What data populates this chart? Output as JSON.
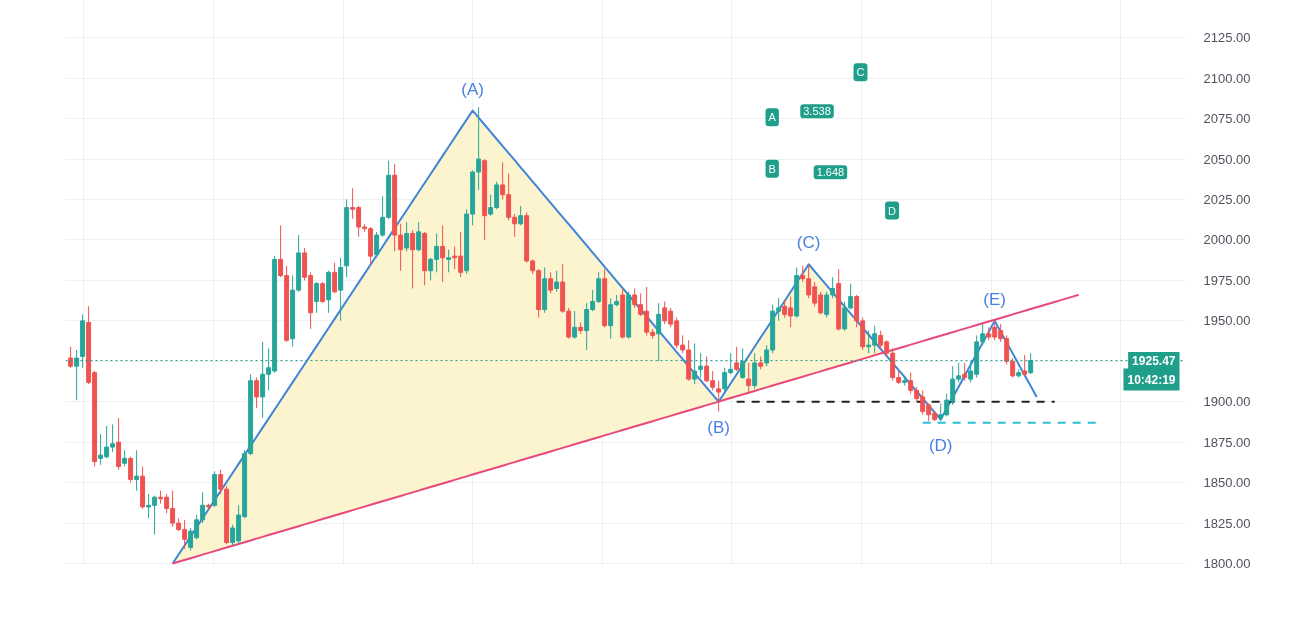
{
  "chart_data": {
    "type": "candlestick",
    "categories": [
      null,
      null,
      null,
      null,
      null,
      null,
      null,
      null,
      null,
      null,
      null,
      null,
      null,
      null,
      null,
      null,
      null,
      null,
      null,
      null,
      null,
      null,
      null,
      null,
      null,
      null,
      null,
      null,
      null,
      null,
      null,
      null,
      null,
      null,
      null,
      null,
      null,
      null,
      null,
      null,
      null,
      null,
      null,
      null,
      null,
      null,
      null,
      null,
      null,
      null,
      null,
      null,
      null,
      null,
      null,
      null,
      null,
      null,
      null,
      null,
      null,
      null,
      null,
      null,
      null,
      null,
      null,
      null,
      null,
      null,
      null,
      null,
      null,
      null,
      null,
      null,
      null,
      null,
      null,
      null,
      null,
      null,
      null,
      null,
      null,
      null,
      null,
      null,
      null,
      null,
      null,
      null,
      null,
      null,
      null,
      null,
      null,
      null,
      null,
      null,
      null,
      null,
      null,
      null,
      null,
      null,
      null,
      null,
      null,
      null,
      null,
      null,
      null,
      null,
      null,
      null,
      null,
      null,
      null,
      null,
      null,
      null,
      null,
      null,
      null,
      null,
      null,
      null,
      null,
      null,
      null,
      null,
      null,
      null,
      null,
      null,
      null,
      null,
      null,
      null,
      null,
      null,
      null,
      null,
      null,
      null,
      null,
      null,
      null,
      null,
      null,
      null,
      null,
      null,
      null,
      null,
      null,
      null,
      null,
      null,
      null,
      null,
      null,
      null,
      null,
      null,
      null,
      null,
      null,
      null,
      null,
      null
    ],
    "ohlc": [
      [
        1927,
        1934,
        1921,
        1922
      ],
      [
        1922,
        1932,
        1901,
        1927
      ],
      [
        1928,
        1954,
        1921,
        1950
      ],
      [
        1949,
        1959,
        1911,
        1912
      ],
      [
        1918,
        1919,
        1860,
        1863
      ],
      [
        1865,
        1880,
        1861,
        1867
      ],
      [
        1866,
        1885,
        1865,
        1872
      ],
      [
        1872,
        1886,
        1869,
        1874
      ],
      [
        1875,
        1890,
        1858,
        1860
      ],
      [
        1862,
        1870,
        1860,
        1865
      ],
      [
        1865,
        1866,
        1850,
        1852
      ],
      [
        1852,
        1870,
        1845,
        1854
      ],
      [
        1854,
        1860,
        1834,
        1835
      ],
      [
        1835,
        1843,
        1828,
        1836
      ],
      [
        1836,
        1842,
        1818,
        1841
      ],
      [
        1841,
        1845,
        1837,
        1840
      ],
      [
        1841,
        1843,
        1831,
        1834
      ],
      [
        1834,
        1845,
        1823,
        1825
      ],
      [
        1825,
        1828,
        1820,
        1821
      ],
      [
        1821,
        1827,
        1809,
        1815
      ],
      [
        1810,
        1822,
        1808,
        1820
      ],
      [
        1816,
        1830,
        1815,
        1827
      ],
      [
        1827,
        1844,
        1825,
        1836
      ],
      [
        1836,
        1837,
        1833,
        1835
      ],
      [
        1836,
        1857,
        1835,
        1855
      ],
      [
        1855,
        1858,
        1843,
        1846
      ],
      [
        1846,
        1848,
        1812,
        1813
      ],
      [
        1813,
        1824,
        1811,
        1822
      ],
      [
        1814,
        1836,
        1812,
        1830
      ],
      [
        1829,
        1870,
        1828,
        1868
      ],
      [
        1868,
        1917,
        1867,
        1913
      ],
      [
        1913,
        1915,
        1896,
        1903
      ],
      [
        1903,
        1937,
        1890,
        1917
      ],
      [
        1917,
        1933,
        1907,
        1921
      ],
      [
        1919,
        1990,
        1918,
        1988
      ],
      [
        1988,
        2009,
        1977,
        1978
      ],
      [
        1978,
        1984,
        1937,
        1938
      ],
      [
        1939,
        1978,
        1934,
        1969
      ],
      [
        1969,
        2003,
        1968,
        1992
      ],
      [
        1992,
        1995,
        1975,
        1977
      ],
      [
        1978,
        1980,
        1945,
        1955
      ],
      [
        1962,
        1974,
        1955,
        1973
      ],
      [
        1973,
        1974,
        1961,
        1962
      ],
      [
        1963,
        1981,
        1955,
        1980
      ],
      [
        1980,
        1986,
        1967,
        1968
      ],
      [
        1969,
        1989,
        1950,
        1983
      ],
      [
        1984,
        2025,
        1977,
        2020
      ],
      [
        2020,
        2032,
        2013,
        2019
      ],
      [
        2020,
        2021,
        2002,
        2008
      ],
      [
        2008,
        2010,
        2005,
        2007
      ],
      [
        2007,
        2008,
        1985,
        1990
      ],
      [
        1991,
        2005,
        1989,
        2003
      ],
      [
        2003,
        2027,
        2002,
        2014
      ],
      [
        2014,
        2049,
        2013,
        2040
      ],
      [
        2040,
        2047,
        1993,
        2003
      ],
      [
        2003,
        2010,
        1981,
        1994
      ],
      [
        1995,
        2011,
        1993,
        2004
      ],
      [
        2004,
        2006,
        1970,
        1994
      ],
      [
        1994,
        2011,
        1993,
        2005
      ],
      [
        2004,
        2005,
        1972,
        1981
      ],
      [
        1981,
        1989,
        1975,
        1988
      ],
      [
        1988,
        2004,
        1980,
        1996
      ],
      [
        1996,
        2009,
        1974,
        1989
      ],
      [
        1988,
        1994,
        1980,
        1989
      ],
      [
        1990,
        1996,
        1982,
        1989
      ],
      [
        1990,
        2005,
        1977,
        1980
      ],
      [
        1981,
        2019,
        1979,
        2016
      ],
      [
        2016,
        2043,
        2009,
        2042
      ],
      [
        2042,
        2082,
        2031,
        2050
      ],
      [
        2049,
        2050,
        2000,
        2015
      ],
      [
        2016,
        2028,
        2015,
        2020
      ],
      [
        2020,
        2036,
        2019,
        2034
      ],
      [
        2034,
        2048,
        2025,
        2028
      ],
      [
        2028,
        2041,
        2012,
        2014
      ],
      [
        2014,
        2016,
        2002,
        2010
      ],
      [
        2010,
        2021,
        2009,
        2015
      ],
      [
        2015,
        2017,
        1986,
        1987
      ],
      [
        1987,
        1988,
        1979,
        1981
      ],
      [
        1981,
        1982,
        1952,
        1957
      ],
      [
        1957,
        1983,
        1955,
        1976
      ],
      [
        1976,
        1980,
        1967,
        1969
      ],
      [
        1970,
        1981,
        1968,
        1974
      ],
      [
        1974,
        1985,
        1955,
        1956
      ],
      [
        1956,
        1958,
        1939,
        1940
      ],
      [
        1940,
        1956,
        1939,
        1946
      ],
      [
        1946,
        1949,
        1942,
        1944
      ],
      [
        1944,
        1961,
        1932,
        1957
      ],
      [
        1957,
        1969,
        1956,
        1962
      ],
      [
        1962,
        1980,
        1961,
        1976
      ],
      [
        1976,
        1982,
        1946,
        1947
      ],
      [
        1947,
        1964,
        1939,
        1960
      ],
      [
        1960,
        1966,
        1959,
        1962
      ],
      [
        1966,
        1970,
        1939,
        1940
      ],
      [
        1940,
        1968,
        1939,
        1966
      ],
      [
        1966,
        1970,
        1958,
        1960
      ],
      [
        1960,
        1967,
        1953,
        1954
      ],
      [
        1956,
        1971,
        1941,
        1943
      ],
      [
        1943,
        1945,
        1939,
        1941
      ],
      [
        1942,
        1961,
        1925,
        1954
      ],
      [
        1958,
        1962,
        1948,
        1950
      ],
      [
        1956,
        1958,
        1946,
        1948
      ],
      [
        1950,
        1952,
        1933,
        1935
      ],
      [
        1935,
        1941,
        1930,
        1932
      ],
      [
        1932,
        1938,
        1913,
        1914
      ],
      [
        1914,
        1936,
        1911,
        1919
      ],
      [
        1920,
        1930,
        1915,
        1922
      ],
      [
        1922,
        1928,
        1912,
        1913
      ],
      [
        1913,
        1919,
        1907,
        1909
      ],
      [
        1908,
        1913,
        1894,
        1906
      ],
      [
        1908,
        1921,
        1906,
        1918
      ],
      [
        1918,
        1930,
        1917,
        1920
      ],
      [
        1924,
        1934,
        1919,
        1920
      ],
      [
        1915,
        1933,
        1914,
        1925
      ],
      [
        1914,
        1924,
        1905,
        1910
      ],
      [
        1910,
        1930,
        1908,
        1924
      ],
      [
        1924,
        1928,
        1920,
        1922
      ],
      [
        1924,
        1935,
        1922,
        1932
      ],
      [
        1932,
        1960,
        1930,
        1956
      ],
      [
        1956,
        1964,
        1950,
        1958
      ],
      [
        1959,
        1963,
        1952,
        1954
      ],
      [
        1958,
        1965,
        1946,
        1953
      ],
      [
        1953,
        1983,
        1952,
        1978
      ],
      [
        1978,
        1984,
        1974,
        1976
      ],
      [
        1976,
        1985,
        1964,
        1966
      ],
      [
        1971,
        1974,
        1959,
        1961
      ],
      [
        1966,
        1968,
        1954,
        1955
      ],
      [
        1954,
        1968,
        1952,
        1966
      ],
      [
        1966,
        1977,
        1964,
        1970
      ],
      [
        1973,
        1982,
        1944,
        1945
      ],
      [
        1945,
        1962,
        1944,
        1958
      ],
      [
        1958,
        1973,
        1957,
        1965
      ],
      [
        1965,
        1966,
        1946,
        1950
      ],
      [
        1950,
        1952,
        1932,
        1934
      ],
      [
        1934,
        1944,
        1930,
        1935
      ],
      [
        1935,
        1947,
        1930,
        1942
      ],
      [
        1941,
        1944,
        1932,
        1935
      ],
      [
        1937,
        1938,
        1928,
        1930
      ],
      [
        1930,
        1933,
        1913,
        1915
      ],
      [
        1915,
        1919,
        1911,
        1912
      ],
      [
        1912,
        1916,
        1910,
        1913
      ],
      [
        1913,
        1918,
        1905,
        1907
      ],
      [
        1907,
        1909,
        1900,
        1902
      ],
      [
        1903,
        1907,
        1892,
        1894
      ],
      [
        1898,
        1899,
        1888,
        1892
      ],
      [
        1893,
        1894,
        1888,
        1889
      ],
      [
        1890,
        1899,
        1888,
        1892
      ],
      [
        1892,
        1905,
        1891,
        1901
      ],
      [
        1900,
        1922,
        1898,
        1914
      ],
      [
        1914,
        1924,
        1912,
        1916
      ],
      [
        1917,
        1924,
        1913,
        1915
      ],
      [
        1914,
        1925,
        1912,
        1919
      ],
      [
        1917,
        1941,
        1915,
        1937
      ],
      [
        1937,
        1948,
        1935,
        1942
      ],
      [
        1942,
        1946,
        1938,
        1940
      ],
      [
        1946,
        1950,
        1938,
        1940
      ],
      [
        1944,
        1948,
        1937,
        1939
      ],
      [
        1939,
        1941,
        1923,
        1925
      ],
      [
        1925,
        1927,
        1915,
        1916
      ],
      [
        1916,
        1920,
        1915,
        1918
      ],
      [
        1919,
        1929,
        1916,
        1917
      ],
      [
        1918,
        1930,
        1917,
        1925.47
      ],
      null,
      null,
      null,
      null,
      null,
      null,
      null,
      null,
      null,
      null,
      null
    ],
    "series": [
      {
        "type": "line",
        "color": "#3d85d6",
        "values": [
          null,
          null,
          null,
          null,
          null,
          null,
          null,
          null,
          null,
          null,
          null,
          null,
          null,
          null,
          null,
          null,
          null,
          1800.0,
          1805.6,
          1811.2,
          1816.8,
          1822.4,
          1828.0,
          1833.6,
          1839.2,
          1844.8,
          1850.4,
          1856.0,
          1861.6,
          1867.2,
          1872.8,
          1878.4,
          1884.0,
          1889.6,
          1895.2,
          1900.8,
          1906.4,
          1912.0,
          1917.6,
          1923.2,
          1928.8,
          1934.4,
          1940.0,
          1945.6,
          1951.2,
          1956.8,
          1962.4,
          1968.0,
          1973.6,
          1979.2,
          1984.8,
          1990.4,
          1996.0,
          2001.6,
          2007.2,
          2012.8,
          2018.4,
          2024.0,
          2029.6,
          2035.2,
          2040.8,
          2046.4,
          2052.0,
          2057.6,
          2063.2,
          2068.8,
          2074.4,
          2080.0,
          2075.6,
          2071.2,
          2066.8,
          2062.4,
          2058.0,
          2053.7,
          2049.3,
          2044.9,
          2040.5,
          2036.1,
          2031.7,
          2027.3,
          2022.9,
          2018.5,
          2014.1,
          2009.8,
          2005.4,
          2001.0,
          1996.6,
          1992.2,
          1987.8,
          1983.4,
          1979.0,
          1974.6,
          1970.2,
          1965.9,
          1961.5,
          1957.1,
          1952.7,
          1948.3,
          1943.9,
          1939.5,
          1935.1,
          1930.7,
          1926.3,
          1921.9,
          1917.6,
          1913.2,
          1908.8,
          1904.4,
          1900.0,
          1905.7,
          1911.3,
          1917.0,
          1922.7,
          1928.3,
          1934.0,
          1939.7,
          1945.3,
          1951.0,
          1956.7,
          1962.3,
          1968.0,
          1973.7,
          1979.3,
          1985.0,
          1980.6,
          1976.3,
          1971.9,
          1967.5,
          1963.2,
          1958.8,
          1954.5,
          1950.1,
          1945.7,
          1941.4,
          1937.0,
          1932.6,
          1928.3,
          1923.9,
          1919.5,
          1915.2,
          1910.8,
          1906.5,
          1902.1,
          1897.7,
          1893.4,
          1889.0,
          1895.8,
          1902.6,
          1909.3,
          1916.1,
          1922.9,
          1929.7,
          1936.4,
          1943.2,
          1950.0,
          1943.3,
          1936.6,
          1929.9,
          1923.1,
          1916.4,
          1909.7,
          1903.0,
          null,
          null,
          null,
          null,
          null,
          null,
          null,
          null,
          null,
          null
        ],
        "upper": [
          null,
          null,
          null,
          null,
          null,
          null,
          null,
          null,
          null,
          null,
          null,
          null,
          null,
          null,
          null,
          null,
          null,
          1800.0,
          1805.6,
          1811.2,
          1816.8,
          1822.4,
          1828.0,
          1833.6,
          1839.2,
          1844.8,
          1850.4,
          1856.0,
          1861.6,
          1867.2,
          1872.8,
          1878.4,
          1884.0,
          1889.6,
          1895.2,
          1900.8,
          1906.4,
          1912.0,
          1917.6,
          1923.2,
          1928.8,
          1934.4,
          1940.0,
          1945.6,
          1951.2,
          1956.8,
          1962.4,
          1968.0,
          1973.6,
          1979.2,
          1984.8,
          1990.4,
          1996.0,
          2001.6,
          2007.2,
          2012.8,
          2018.4,
          2024.0,
          2029.6,
          2035.2,
          2040.8,
          2046.4,
          2052.0,
          2057.6,
          2063.2,
          2068.8,
          2074.4,
          2080.0,
          2075.6,
          2071.2,
          2066.8,
          2062.4,
          2058.0,
          2053.7,
          2049.3,
          2044.9,
          2040.5,
          2036.1,
          2031.7,
          2027.3,
          2022.9,
          2018.5,
          2014.1,
          2009.8,
          2005.4,
          2001.0,
          1996.6,
          1992.2,
          1987.8,
          1983.4,
          1979.0,
          1974.6,
          1970.2,
          1965.9,
          1961.5,
          1957.1,
          1952.7,
          1948.3,
          1943.9,
          1939.5,
          1935.1,
          1930.7,
          1926.3,
          1921.9,
          1917.6,
          1913.2,
          1908.8,
          1904.4,
          1900.0,
          1905.7,
          1911.3,
          1917.0,
          1922.7,
          1928.3,
          1934.0,
          1939.7,
          1945.3,
          1951.0,
          1956.7,
          1962.3,
          1968.0,
          1973.7,
          1979.3,
          1985.0,
          1980.6,
          1976.3,
          1971.9,
          1967.5,
          1963.2,
          1958.8,
          1954.5,
          1950.1,
          1945.7,
          1941.4,
          1937.0,
          1932.6,
          null,
          null,
          null,
          null,
          null,
          null,
          null,
          null,
          null,
          null,
          null,
          null,
          null,
          null,
          null,
          null,
          null,
          null,
          null,
          null,
          null,
          null,
          null,
          null,
          null,
          null,
          null,
          null,
          null,
          null,
          null,
          null,
          null,
          null,
          null,
          null
        ],
        "lower": [
          null,
          null,
          null,
          null,
          null,
          null,
          null,
          null,
          null,
          null,
          null,
          null,
          null,
          null,
          null,
          null,
          null,
          1800.0,
          1801.1,
          1802.2,
          1803.3,
          1804.4,
          1805.5,
          1806.6,
          1807.7,
          1808.8,
          1809.9,
          1811.0,
          1812.1,
          1813.2,
          1814.3,
          1815.4,
          1816.5,
          1817.6,
          1818.7,
          1819.8,
          1820.9,
          1822.0,
          1823.1,
          1824.2,
          1825.3,
          1826.4,
          1827.5,
          1828.6,
          1829.7,
          1830.8,
          1831.9,
          1833.0,
          1834.1,
          1835.2,
          1836.3,
          1837.4,
          1838.5,
          1839.6,
          1840.7,
          1841.8,
          1842.9,
          1844.0,
          1845.1,
          1846.2,
          1847.3,
          1848.4,
          1849.5,
          1850.6,
          1851.7,
          1852.8,
          1853.9,
          1855.0,
          1856.1,
          1857.2,
          1858.3,
          1859.4,
          1860.5,
          1861.6,
          1862.7,
          1863.8,
          1864.9,
          1866.0,
          1867.1,
          1868.2,
          1869.3,
          1870.4,
          1871.5,
          1872.6,
          1873.7,
          1874.8,
          1875.9,
          1877.0,
          1878.1,
          1879.2,
          1880.3,
          1881.4,
          1882.5,
          1883.6,
          1884.7,
          1885.8,
          1886.9,
          1888.0,
          1889.1,
          1890.2,
          1891.3,
          1892.4,
          1893.5,
          1894.6,
          1895.7,
          1896.8,
          1897.9,
          1899.0,
          1900.1,
          1901.2,
          1902.3,
          1903.4,
          1904.5,
          1905.6,
          1906.7,
          1907.8,
          1908.9,
          1910.0,
          1911.1,
          1912.2,
          1913.3,
          1914.4,
          1915.5,
          1916.6,
          1917.7,
          1918.8,
          1919.9,
          1921.0,
          1922.1,
          1923.2,
          1924.3,
          1925.4,
          1926.5,
          1927.6,
          1928.7,
          1929.8,
          null,
          null,
          null,
          null,
          null,
          null,
          null,
          null,
          null,
          null,
          null,
          null,
          null,
          null,
          null,
          null,
          null,
          null,
          null,
          null,
          null,
          null,
          null,
          null,
          null,
          null,
          null,
          null,
          null,
          null,
          null,
          null,
          null,
          null,
          null,
          null
        ]
      },
      {
        "type": "line",
        "color": "#e8497a",
        "values": [
          null,
          null,
          null,
          null,
          null,
          null,
          null,
          null,
          null,
          null,
          null,
          null,
          null,
          null,
          null,
          null,
          null,
          1800.0,
          1801.1,
          1802.2,
          1803.3,
          1804.4,
          1805.5,
          1806.6,
          1807.7,
          1808.8,
          1809.9,
          1811.0,
          1812.1,
          1813.2,
          1814.3,
          1815.4,
          1816.5,
          1817.6,
          1818.7,
          1819.8,
          1820.9,
          1822.0,
          1823.1,
          1824.2,
          1825.3,
          1826.4,
          1827.5,
          1828.6,
          1829.7,
          1830.8,
          1831.9,
          1833.0,
          1834.1,
          1835.2,
          1836.3,
          1837.4,
          1838.5,
          1839.6,
          1840.7,
          1841.8,
          1842.9,
          1844.0,
          1845.1,
          1846.2,
          1847.3,
          1848.4,
          1849.5,
          1850.6,
          1851.7,
          1852.8,
          1853.9,
          1855.0,
          1856.1,
          1857.2,
          1858.3,
          1859.4,
          1860.5,
          1861.6,
          1862.7,
          1863.8,
          1864.9,
          1866.0,
          1867.1,
          1868.2,
          1869.3,
          1870.4,
          1871.5,
          1872.6,
          1873.7,
          1874.8,
          1875.9,
          1877.0,
          1878.1,
          1879.2,
          1880.3,
          1881.4,
          1882.5,
          1883.6,
          1884.7,
          1885.8,
          1886.9,
          1888.0,
          1889.1,
          1890.2,
          1891.3,
          1892.4,
          1893.5,
          1894.6,
          1895.7,
          1896.8,
          1897.9,
          1899.0,
          1900.1,
          1901.2,
          1902.3,
          1903.4,
          1904.5,
          1905.6,
          1906.7,
          1907.8,
          1908.9,
          1910.0,
          1911.1,
          1912.2,
          1913.3,
          1914.4,
          1915.5,
          1916.6,
          1917.7,
          1918.8,
          1919.9,
          1921.0,
          1922.1,
          1923.2,
          1924.3,
          1925.4,
          1926.5,
          1927.6,
          1928.7,
          1929.8,
          1930.9,
          1932.0,
          1933.1,
          1934.2,
          1935.3,
          1936.4,
          1937.5,
          1938.6,
          1939.7,
          1940.8,
          1941.9,
          1943.0,
          1944.1,
          1945.2,
          1946.3,
          1947.4,
          1948.5,
          1949.6,
          1950.7,
          1951.8,
          1952.9,
          1954.0,
          1955.1,
          1956.2,
          1957.3,
          1958.4,
          1959.5,
          1960.6,
          1961.7,
          1962.8,
          1963.9,
          1965.0,
          1966.1,
          null,
          null,
          null
        ]
      },
      {
        "type": "line",
        "color": "#222222",
        "line_style": "dashed",
        "values": [
          null,
          null,
          null,
          null,
          null,
          null,
          null,
          null,
          null,
          null,
          null,
          null,
          null,
          null,
          null,
          null,
          null,
          null,
          null,
          null,
          null,
          null,
          null,
          null,
          null,
          null,
          null,
          null,
          null,
          null,
          null,
          null,
          null,
          null,
          null,
          null,
          null,
          null,
          null,
          null,
          null,
          null,
          null,
          null,
          null,
          null,
          null,
          null,
          null,
          null,
          null,
          null,
          null,
          null,
          null,
          null,
          null,
          null,
          null,
          null,
          null,
          null,
          null,
          null,
          null,
          null,
          null,
          null,
          null,
          null,
          null,
          null,
          null,
          null,
          null,
          null,
          null,
          null,
          null,
          null,
          null,
          null,
          null,
          null,
          null,
          null,
          null,
          null,
          null,
          null,
          null,
          null,
          null,
          null,
          null,
          null,
          null,
          null,
          null,
          null,
          null,
          null,
          null,
          null,
          null,
          null,
          null,
          null,
          null,
          null,
          null,
          1900,
          1900,
          1900,
          1900,
          1900,
          1900,
          1900,
          1900,
          1900,
          1900,
          1900,
          1900,
          1900,
          1900,
          1900,
          1900,
          1900,
          1900,
          1900,
          1900,
          1900,
          1900,
          1900,
          1900,
          1900,
          1900,
          1900,
          1900,
          1900,
          1900,
          1900,
          1900,
          1900,
          1900,
          1900,
          1900,
          1900,
          1900,
          1900,
          1900,
          1900,
          1900,
          1900,
          1900,
          1900,
          1900,
          1900,
          1900,
          1900,
          1900,
          1900,
          1900,
          1900,
          1900,
          null,
          null,
          null,
          null,
          null,
          null,
          null
        ]
      },
      {
        "type": "line",
        "color": "#2bbfd6",
        "line_style": "dashed",
        "values": [
          null,
          null,
          null,
          null,
          null,
          null,
          null,
          null,
          null,
          null,
          null,
          null,
          null,
          null,
          null,
          null,
          null,
          null,
          null,
          null,
          null,
          null,
          null,
          null,
          null,
          null,
          null,
          null,
          null,
          null,
          null,
          null,
          null,
          null,
          null,
          null,
          null,
          null,
          null,
          null,
          null,
          null,
          null,
          null,
          null,
          null,
          null,
          null,
          null,
          null,
          null,
          null,
          null,
          null,
          null,
          null,
          null,
          null,
          null,
          null,
          null,
          null,
          null,
          null,
          null,
          null,
          null,
          null,
          null,
          null,
          null,
          null,
          null,
          null,
          null,
          null,
          null,
          null,
          null,
          null,
          null,
          null,
          null,
          null,
          null,
          null,
          null,
          null,
          null,
          null,
          null,
          null,
          null,
          null,
          null,
          null,
          null,
          null,
          null,
          null,
          null,
          null,
          null,
          null,
          null,
          null,
          null,
          null,
          null,
          null,
          null,
          null,
          null,
          null,
          null,
          null,
          null,
          null,
          null,
          null,
          null,
          null,
          null,
          null,
          null,
          null,
          null,
          null,
          null,
          null,
          null,
          null,
          null,
          null,
          null,
          null,
          null,
          null,
          null,
          null,
          null,
          null,
          1887,
          1887,
          1887,
          1887,
          1887,
          1887,
          1887,
          1887,
          1887,
          1887,
          1887,
          1887,
          1887,
          1887,
          1887,
          1887,
          1887,
          1887,
          1887,
          1887,
          1887,
          1887,
          1887,
          1887,
          1887,
          1887,
          1887,
          1887,
          1887,
          1887
        ]
      }
    ],
    "ylim": [
      1798.8,
      2148
    ],
    "yticks": [
      {
        "value": 1800,
        "label": "1800.00"
      },
      {
        "value": 1825,
        "label": "1825.00"
      },
      {
        "value": 1850,
        "label": "1850.00"
      },
      {
        "value": 1875,
        "label": "1875.00"
      },
      {
        "value": 1900,
        "label": "1900.00"
      },
      {
        "value": 1925,
        "label": null
      },
      {
        "value": 1950,
        "label": "1950.00"
      },
      {
        "value": 1975,
        "label": "1975.00"
      },
      {
        "value": 2000,
        "label": "2000.00"
      },
      {
        "value": 2025,
        "label": "2025.00"
      },
      {
        "value": 2050,
        "label": "2050.00"
      },
      {
        "value": 2075,
        "label": "2075.00"
      },
      {
        "value": 2100,
        "label": "2100.00"
      },
      {
        "value": 2125,
        "label": "2125.00"
      }
    ],
    "tick_labels": "y",
    "grid": true,
    "ref_lines": [
      {
        "axis": "y",
        "value": 1925.47,
        "label": "1925.47",
        "color": "#1f9e89",
        "line_style": "dotted"
      }
    ],
    "annotations": [
      {
        "text": "(A)",
        "y": 2080
      },
      {
        "text": "(B)",
        "y": 1900
      },
      {
        "text": "(C)",
        "y": 1985
      },
      {
        "text": "(D)",
        "y": 1889
      },
      {
        "text": "(E)",
        "y": 1950
      },
      {
        "text": "10:42:19",
        "y": 1925.47
      },
      "A",
      "B",
      "C",
      "D",
      "3.538",
      "1.648"
    ]
  }
}
